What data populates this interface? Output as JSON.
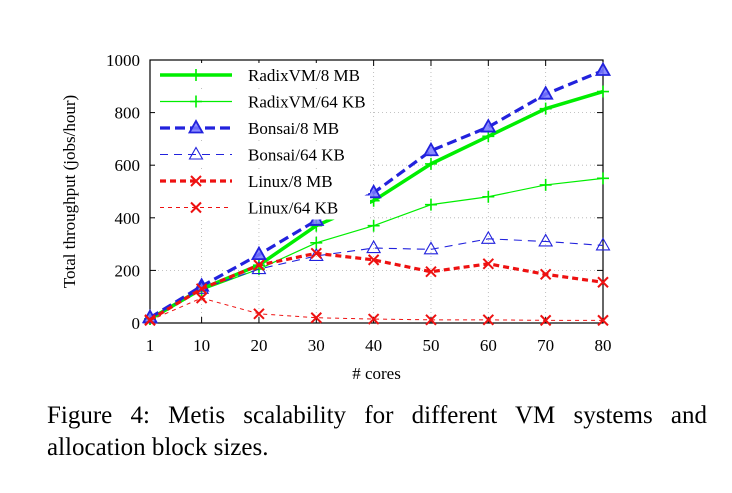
{
  "chart_data": {
    "type": "line",
    "title": "",
    "xlabel": "# cores",
    "ylabel": "Total throughput (jobs/hour)",
    "x": [
      1,
      10,
      20,
      30,
      40,
      50,
      60,
      70,
      80
    ],
    "x_ticks": [
      "1",
      "10",
      "20",
      "30",
      "40",
      "50",
      "60",
      "70",
      "80"
    ],
    "y_ticks": [
      "0",
      "200",
      "400",
      "600",
      "800",
      "1000"
    ],
    "xlim": [
      1,
      80
    ],
    "ylim": [
      0,
      1000
    ],
    "grid": true,
    "legend_position": "top-left",
    "series": [
      {
        "name": "RadixVM/8 MB",
        "color": "#00ee00",
        "style": "solid-thick",
        "marker": "plus",
        "values": [
          15,
          130,
          220,
          370,
          465,
          605,
          710,
          815,
          880
        ]
      },
      {
        "name": "RadixVM/64 KB",
        "color": "#00ee00",
        "style": "solid-thin",
        "marker": "plus",
        "values": [
          15,
          125,
          205,
          305,
          370,
          450,
          480,
          525,
          550
        ]
      },
      {
        "name": "Bonsai/8 MB",
        "color": "#2222dd",
        "style": "dashed-thick",
        "marker": "triangle-filled",
        "values": [
          20,
          140,
          260,
          390,
          495,
          655,
          745,
          870,
          960
        ]
      },
      {
        "name": "Bonsai/64 KB",
        "color": "#2222dd",
        "style": "dashed-thin",
        "marker": "triangle-open",
        "values": [
          18,
          130,
          205,
          255,
          285,
          280,
          320,
          310,
          295
        ]
      },
      {
        "name": "Linux/8 MB",
        "color": "#ee1111",
        "style": "dotted-thick",
        "marker": "cross",
        "values": [
          12,
          130,
          220,
          265,
          240,
          195,
          225,
          185,
          155
        ]
      },
      {
        "name": "Linux/64 KB",
        "color": "#ee1111",
        "style": "dashed-thin-red",
        "marker": "cross",
        "values": [
          10,
          95,
          35,
          20,
          15,
          12,
          12,
          10,
          10
        ]
      }
    ]
  },
  "caption": {
    "line1": "Figure 4: Metis scalability for different VM systems and",
    "line2": "allocation block sizes."
  }
}
